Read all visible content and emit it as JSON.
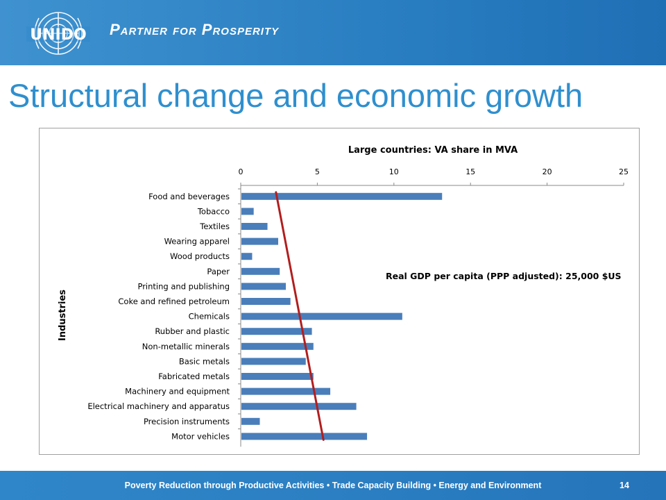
{
  "header": {
    "logo_text": "UNIDO",
    "tagline": "Partner for Prosperity"
  },
  "slide": {
    "title": "Structural change and economic growth"
  },
  "chart_data": {
    "type": "bar",
    "orientation": "horizontal",
    "title": "Large countries: VA share in MVA",
    "ylabel": "Industries",
    "xlabel": "",
    "xlim": [
      0,
      25
    ],
    "x_ticks": [
      "0",
      "5",
      "10",
      "15",
      "20",
      "25"
    ],
    "x_axis_position": "top",
    "grid": false,
    "categories": [
      "Food and beverages",
      "Tobacco",
      "Textiles",
      "Wearing apparel",
      "Wood products",
      "Paper",
      "Printing and publishing",
      "Coke and refined petroleum",
      "Chemicals",
      "Rubber and plastic",
      "Non-metallic minerals",
      "Basic metals",
      "Fabricated metals",
      "Machinery and equipment",
      "Electrical machinery and apparatus",
      "Precision instruments",
      "Motor vehicles"
    ],
    "values": [
      13.1,
      0.8,
      1.7,
      2.4,
      0.7,
      2.5,
      2.9,
      3.2,
      10.5,
      4.6,
      4.7,
      4.2,
      4.7,
      5.8,
      7.5,
      1.2,
      8.2
    ],
    "bar_color": "#4a7ebb",
    "trend_line": {
      "color": "#b21e1e",
      "x_values": [
        2.3,
        5.4
      ]
    },
    "annotation": "Real GDP per capita (PPP adjusted): 25,000 $US"
  },
  "footer": {
    "text": "Poverty Reduction through Productive Activities  •  Trade Capacity Building  •  Energy and Environment",
    "page_number": "14"
  }
}
